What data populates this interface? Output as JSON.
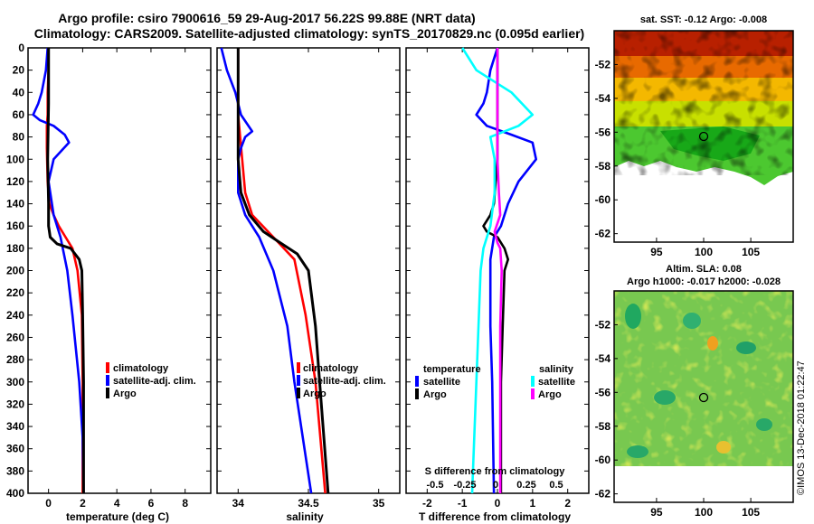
{
  "header": {
    "line1": "Argo profile: csiro 7900616_59 29-Aug-2017 56.22S 99.88E (NRT data)",
    "line2": "Climatology: CARS2009. Satellite-adjusted climatology: synTS_20170829.nc (0.095d earlier)"
  },
  "depth_ticks": [
    "0",
    "20",
    "40",
    "60",
    "80",
    "100",
    "120",
    "140",
    "160",
    "180",
    "200",
    "220",
    "240",
    "260",
    "280",
    "300",
    "320",
    "340",
    "360",
    "380",
    "400"
  ],
  "colors": {
    "climatology": "#ff0000",
    "satellite": "#0000ff",
    "argo": "#000000",
    "salinity_satellite": "#00ffff",
    "salinity_argo": "#ff00ff"
  },
  "chart_data": [
    {
      "type": "line",
      "title": "",
      "xlabel": "temperature (deg C)",
      "ylabel": "depth",
      "xlim": [
        -1.2,
        9.5
      ],
      "ylim": [
        400,
        0
      ],
      "xticks": [
        0,
        2,
        4,
        6,
        8
      ],
      "xticklabels": [
        "0",
        "2",
        "4",
        "6",
        "8"
      ],
      "legend": [
        "climatology",
        "satellite-adj. clim.",
        "Argo"
      ],
      "series": [
        {
          "name": "climatology",
          "depth": [
            0,
            20,
            40,
            60,
            70,
            90,
            120,
            140,
            150,
            160,
            170,
            180,
            200,
            240,
            300,
            400
          ],
          "values": [
            0,
            0,
            -0.05,
            -0.05,
            -0.1,
            -0.1,
            -0.05,
            0.05,
            0.3,
            0.6,
            1.0,
            1.4,
            1.7,
            1.95,
            2.0,
            2.0
          ]
        },
        {
          "name": "satellite-adj. clim.",
          "depth": [
            0,
            20,
            40,
            50,
            60,
            65,
            70,
            78,
            85,
            100,
            120,
            150,
            170,
            200,
            240,
            300,
            350,
            400
          ],
          "values": [
            -0.05,
            -0.15,
            -0.4,
            -0.6,
            -0.9,
            -0.5,
            0.3,
            0.95,
            1.2,
            0.3,
            0,
            0.3,
            0.7,
            1.1,
            1.4,
            1.8,
            2.0,
            2.05
          ]
        },
        {
          "name": "Argo",
          "depth": [
            0,
            50,
            100,
            140,
            160,
            170,
            176,
            180,
            190,
            200,
            240,
            300,
            400
          ],
          "values": [
            0,
            0,
            -0.05,
            0,
            0,
            0.1,
            0.5,
            1.3,
            1.8,
            1.95,
            2.0,
            2.05,
            2.05
          ]
        }
      ]
    },
    {
      "type": "line",
      "title": "",
      "xlabel": "salinity",
      "ylabel": "depth",
      "xlim": [
        33.85,
        35.15
      ],
      "ylim": [
        400,
        0
      ],
      "xticks": [
        34,
        34.5,
        35
      ],
      "xticklabels": [
        "34",
        "34.5",
        "35"
      ],
      "legend": [
        "climatology",
        "satellite-adj. clim.",
        "Argo"
      ],
      "series": [
        {
          "name": "climatology",
          "depth": [
            0,
            40,
            60,
            130,
            150,
            170,
            190,
            240,
            300,
            400
          ],
          "values": [
            34.0,
            34.0,
            34.0,
            34.05,
            34.1,
            34.25,
            34.4,
            34.48,
            34.55,
            34.62
          ]
        },
        {
          "name": "satellite-adj. clim.",
          "depth": [
            0,
            20,
            40,
            60,
            75,
            80,
            90,
            100,
            130,
            150,
            170,
            200,
            250,
            300,
            400
          ],
          "values": [
            33.88,
            33.92,
            33.98,
            34.02,
            34.1,
            34.05,
            34.02,
            34.0,
            34.0,
            34.05,
            34.15,
            34.25,
            34.35,
            34.4,
            34.52
          ]
        },
        {
          "name": "Argo",
          "depth": [
            0,
            100,
            130,
            150,
            165,
            175,
            185,
            200,
            250,
            300,
            400
          ],
          "values": [
            34.0,
            34.0,
            34.02,
            34.08,
            34.18,
            34.3,
            34.42,
            34.5,
            34.55,
            34.58,
            34.64
          ]
        }
      ]
    },
    {
      "type": "line",
      "title": "",
      "xlabel": "T difference from climatology",
      "ylabel": "depth",
      "xlim": [
        -2.6,
        2.6
      ],
      "ylim": [
        400,
        0
      ],
      "xticks": [
        -2,
        -1,
        0,
        1,
        2
      ],
      "xticklabels": [
        "-2",
        "-1",
        "0",
        "1",
        "2"
      ],
      "secondary_xlabel": "S difference from climatology",
      "secondary_ticklabels": [
        "-0.5",
        "-0.25",
        "0",
        "0.25",
        "0.5"
      ],
      "legend_temperature_title": "temperature",
      "legend_temperature": [
        "satellite",
        "Argo"
      ],
      "legend_salinity_title": "salinity",
      "legend_salinity": [
        "satellite",
        "Argo"
      ],
      "series": [
        {
          "name": "temperature satellite",
          "depth": [
            0,
            20,
            40,
            50,
            60,
            70,
            78,
            85,
            100,
            120,
            140,
            150,
            160,
            170,
            190,
            250,
            300,
            400
          ],
          "values": [
            0,
            -0.2,
            -0.3,
            -0.4,
            -0.6,
            -0.3,
            0.4,
            1.0,
            1.1,
            0.6,
            0.3,
            0.2,
            0.1,
            -0.1,
            -0.2,
            -0.2,
            -0.15,
            -0.1
          ]
        },
        {
          "name": "temperature Argo",
          "depth": [
            0,
            50,
            100,
            140,
            150,
            160,
            165,
            170,
            180,
            190,
            200,
            250,
            300,
            400
          ],
          "values": [
            0,
            0,
            0,
            -0.1,
            -0.2,
            -0.4,
            -0.3,
            0,
            0.2,
            0.3,
            0.2,
            0.15,
            0.1,
            0.1
          ]
        },
        {
          "name": "salinity satellite",
          "depth": [
            0,
            20,
            40,
            60,
            70,
            80,
            100,
            130,
            160,
            180,
            200,
            300,
            400
          ],
          "values": [
            -0.25,
            -0.15,
            0.1,
            0.25,
            0.15,
            -0.05,
            -0.02,
            -0.02,
            -0.05,
            -0.1,
            -0.12,
            -0.15,
            -0.18
          ]
        },
        {
          "name": "salinity Argo",
          "depth": [
            0,
            100,
            130,
            150,
            165,
            175,
            180,
            200,
            250,
            300,
            400
          ],
          "values": [
            0,
            0,
            0.01,
            0.02,
            -0.02,
            0,
            0.02,
            0.03,
            0.02,
            0.02,
            0.02
          ]
        }
      ]
    },
    {
      "type": "heatmap",
      "title": "sat. SST: -0.12 Argo: -0.008",
      "xticks": [
        95,
        100,
        105
      ],
      "xticklabels": [
        "95",
        "100",
        "105"
      ],
      "yticks": [
        -52,
        -54,
        -56,
        -58,
        -60,
        -62
      ],
      "yticklabels": [
        "-52",
        "-54",
        "-56",
        "-58",
        "-60",
        "-62"
      ],
      "marker": {
        "lon": 99.88,
        "lat": -56.22
      }
    },
    {
      "type": "heatmap",
      "title": "Altim. SLA: 0.08",
      "subtitle": "Argo h1000: -0.017 h2000: -0.028",
      "xticks": [
        95,
        100,
        105
      ],
      "xticklabels": [
        "95",
        "100",
        "105"
      ],
      "yticks": [
        -52,
        -54,
        -56,
        -58,
        -60,
        -62
      ],
      "yticklabels": [
        "-52",
        "-54",
        "-56",
        "-58",
        "-60",
        "-62"
      ],
      "marker": {
        "lon": 99.88,
        "lat": -56.22
      }
    }
  ],
  "watermark": "©IMOS 13-Dec-2018 01:22:47"
}
